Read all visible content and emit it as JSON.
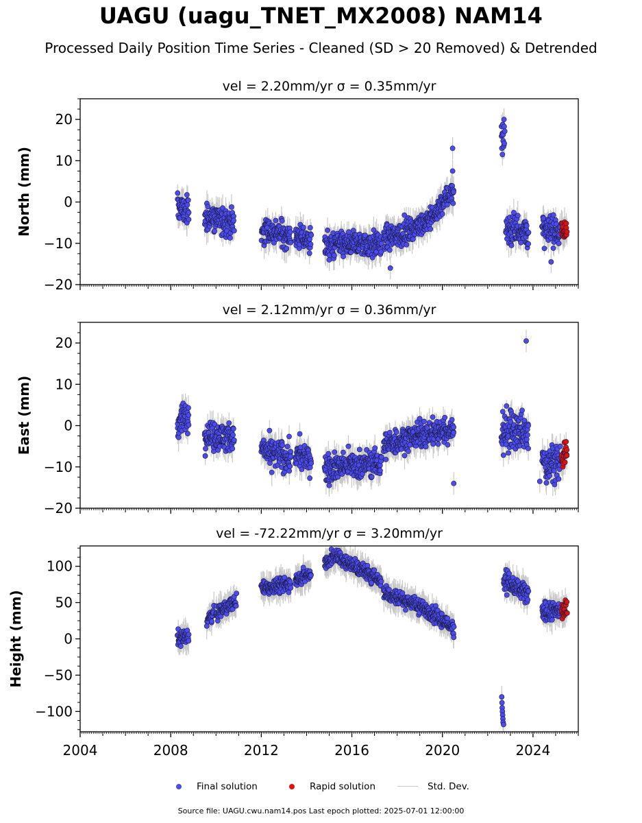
{
  "figure": {
    "title": "UAGU (uagu_TNET_MX2008) NAM14",
    "subtitle": "Processed Daily Position Time Series - Cleaned (SD > 20 Removed) & Detrended",
    "footer": "Source file: UAGU.cwu.nam14.pos  Last epoch plotted: 2025-07-01 12:00:00"
  },
  "legend": {
    "final_label": "Final solution",
    "rapid_label": "Rapid solution",
    "std_label": "Std. Dev."
  },
  "colors": {
    "final": "#4b4bf0",
    "rapid": "#e01010",
    "std": "#c8c8c8",
    "edge": "#1a1a3a"
  },
  "chart_data": [
    {
      "type": "scatter",
      "subplot_title": "vel = 2.20mm/yr   σ = 0.35mm/yr",
      "ylabel": "North (mm)",
      "xlim": [
        2004.0,
        2026.0
      ],
      "ylim": [
        -20,
        25
      ],
      "yticks": [
        -20,
        -10,
        0,
        10,
        20
      ],
      "ytick_labels": [
        "−20",
        "−10",
        "0",
        "10",
        "20"
      ],
      "xtick_labels_shown": false,
      "segments": [
        {
          "x": [
            2008.3,
            2008.8
          ],
          "y": [
            -1,
            -2.5
          ],
          "spread": 3.2
        },
        {
          "x": [
            2009.5,
            2010.8
          ],
          "y": [
            -3.5,
            -5
          ],
          "spread": 3.5
        },
        {
          "x": [
            2012.0,
            2013.3
          ],
          "y": [
            -7,
            -8
          ],
          "spread": 3.0
        },
        {
          "x": [
            2013.5,
            2014.2
          ],
          "y": [
            -8.5,
            -9
          ],
          "spread": 3.0
        },
        {
          "x": [
            2014.8,
            2017.3
          ],
          "y": [
            -10.5,
            -10
          ],
          "spread": 3.0
        },
        {
          "x": [
            2017.4,
            2018.5
          ],
          "y": [
            -9,
            -7
          ],
          "spread": 2.8
        },
        {
          "x": [
            2018.5,
            2019.5
          ],
          "y": [
            -7,
            -4
          ],
          "spread": 2.5
        },
        {
          "x": [
            2019.5,
            2020.5
          ],
          "y": [
            -4,
            3
          ],
          "spread": 2.5
        },
        {
          "x": [
            2022.6,
            2022.75
          ],
          "y": [
            17,
            15
          ],
          "spread": 3.5
        },
        {
          "x": [
            2022.8,
            2023.8
          ],
          "y": [
            -6,
            -7
          ],
          "spread": 4.0
        },
        {
          "x": [
            2024.4,
            2025.2
          ],
          "y": [
            -7,
            -7
          ],
          "spread": 3.5
        }
      ],
      "rapid": {
        "x": [
          2025.25,
          2025.5
        ],
        "y": [
          -7,
          -7
        ],
        "spread": 3.0
      },
      "outliers": [
        {
          "x": 2015.0,
          "y": -14
        },
        {
          "x": 2017.7,
          "y": -16
        },
        {
          "x": 2020.45,
          "y": 13
        },
        {
          "x": 2020.45,
          "y": 7.5
        },
        {
          "x": 2022.65,
          "y": 11.5
        },
        {
          "x": 2022.72,
          "y": 20
        },
        {
          "x": 2024.8,
          "y": -14.5
        }
      ]
    },
    {
      "type": "scatter",
      "subplot_title": "vel = 2.12mm/yr   σ = 0.36mm/yr",
      "ylabel": "East (mm)",
      "xlim": [
        2004.0,
        2026.0
      ],
      "ylim": [
        -20,
        25
      ],
      "yticks": [
        -20,
        -10,
        0,
        10,
        20
      ],
      "ytick_labels": [
        "−20",
        "−10",
        "0",
        "10",
        "20"
      ],
      "xtick_labels_shown": false,
      "segments": [
        {
          "x": [
            2008.3,
            2008.8
          ],
          "y": [
            0.5,
            2.5
          ],
          "spread": 3.5
        },
        {
          "x": [
            2009.5,
            2010.8
          ],
          "y": [
            -2,
            -3
          ],
          "spread": 3.5
        },
        {
          "x": [
            2012.0,
            2013.3
          ],
          "y": [
            -6,
            -8
          ],
          "spread": 3.5
        },
        {
          "x": [
            2013.5,
            2014.2
          ],
          "y": [
            -7.5,
            -8
          ],
          "spread": 3.0
        },
        {
          "x": [
            2014.8,
            2017.3
          ],
          "y": [
            -10,
            -9
          ],
          "spread": 3.2
        },
        {
          "x": [
            2017.4,
            2018.5
          ],
          "y": [
            -5,
            -3
          ],
          "spread": 3.0
        },
        {
          "x": [
            2018.5,
            2020.5
          ],
          "y": [
            -2.5,
            -1
          ],
          "spread": 3.0
        },
        {
          "x": [
            2022.6,
            2023.8
          ],
          "y": [
            -1,
            -2
          ],
          "spread": 5.0
        },
        {
          "x": [
            2024.4,
            2025.2
          ],
          "y": [
            -9,
            -9
          ],
          "spread": 4.0
        }
      ],
      "rapid": {
        "x": [
          2025.25,
          2025.5
        ],
        "y": [
          -7,
          -7
        ],
        "spread": 3.0
      },
      "outliers": [
        {
          "x": 2023.7,
          "y": 20.5
        },
        {
          "x": 2020.5,
          "y": -14
        },
        {
          "x": 2013.7,
          "y": -2
        },
        {
          "x": 2024.3,
          "y": -13.5
        },
        {
          "x": 2015.0,
          "y": -14.5
        }
      ]
    },
    {
      "type": "scatter",
      "subplot_title": "vel = -72.22mm/yr   σ = 3.20mm/yr",
      "ylabel": "Height (mm)",
      "xlim": [
        2004.0,
        2026.0
      ],
      "ylim": [
        -128,
        128
      ],
      "yticks": [
        -100,
        -50,
        0,
        50,
        100
      ],
      "ytick_labels": [
        "−100",
        "−50",
        "0",
        "50",
        "100"
      ],
      "xticks": [
        2004,
        2008,
        2012,
        2016,
        2020,
        2024
      ],
      "xtick_labels": [
        "2004",
        "2008",
        "2012",
        "2016",
        "2020",
        "2024"
      ],
      "xtick_labels_shown": true,
      "segments": [
        {
          "x": [
            2008.3,
            2008.8
          ],
          "y": [
            0,
            3
          ],
          "spread": 10
        },
        {
          "x": [
            2009.6,
            2009.9
          ],
          "y": [
            25,
            35
          ],
          "spread": 8
        },
        {
          "x": [
            2010.0,
            2010.9
          ],
          "y": [
            35,
            52
          ],
          "spread": 10
        },
        {
          "x": [
            2012.0,
            2013.3
          ],
          "y": [
            70,
            75
          ],
          "spread": 10
        },
        {
          "x": [
            2013.5,
            2014.2
          ],
          "y": [
            82,
            90
          ],
          "spread": 9
        },
        {
          "x": [
            2014.8,
            2015.4
          ],
          "y": [
            105,
            115
          ],
          "spread": 10
        },
        {
          "x": [
            2015.4,
            2017.3
          ],
          "y": [
            112,
            80
          ],
          "spread": 10
        },
        {
          "x": [
            2017.4,
            2019.0
          ],
          "y": [
            65,
            45
          ],
          "spread": 10
        },
        {
          "x": [
            2019.0,
            2020.5
          ],
          "y": [
            45,
            15
          ],
          "spread": 10
        },
        {
          "x": [
            2022.7,
            2023.2
          ],
          "y": [
            85,
            70
          ],
          "spread": 14
        },
        {
          "x": [
            2023.2,
            2023.8
          ],
          "y": [
            70,
            60
          ],
          "spread": 14
        },
        {
          "x": [
            2024.4,
            2025.2
          ],
          "y": [
            35,
            40
          ],
          "spread": 12
        }
      ],
      "rapid": {
        "x": [
          2025.25,
          2025.5
        ],
        "y": [
          40,
          40
        ],
        "spread": 12
      },
      "outliers": [
        {
          "x": 2022.62,
          "y": -80
        },
        {
          "x": 2022.63,
          "y": -88
        },
        {
          "x": 2022.64,
          "y": -95
        },
        {
          "x": 2022.65,
          "y": -100
        },
        {
          "x": 2022.66,
          "y": -105
        },
        {
          "x": 2022.67,
          "y": -110
        },
        {
          "x": 2022.68,
          "y": -115
        },
        {
          "x": 2022.7,
          "y": -118
        },
        {
          "x": 2020.5,
          "y": 2
        }
      ]
    }
  ]
}
